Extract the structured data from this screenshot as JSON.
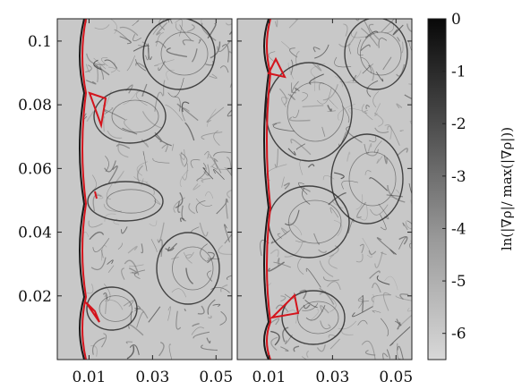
{
  "chart_data": [
    {
      "type": "heatmap",
      "panel": "left",
      "x_ticks": [
        "0.01",
        "0.03",
        "0.05"
      ],
      "x_tick_values": [
        0.01,
        0.03,
        0.05
      ],
      "y_ticks": [
        "0.1",
        "0.08",
        "0.06",
        "0.04",
        "0.02"
      ],
      "y_tick_values": [
        0.1,
        0.08,
        0.06,
        0.04,
        0.02
      ],
      "xlim": [
        0.0,
        0.055
      ],
      "ylim": [
        0.0,
        0.107
      ],
      "overlay_color": "#d4141c"
    },
    {
      "type": "heatmap",
      "panel": "right",
      "x_ticks": [
        "0.01",
        "0.03",
        "0.05"
      ],
      "x_tick_values": [
        0.01,
        0.03,
        0.05
      ],
      "xlim": [
        0.0,
        0.055
      ],
      "ylim": [
        0.0,
        0.107
      ],
      "overlay_color": "#d4141c"
    }
  ],
  "colorbar": {
    "label": "ln(|∇ρ|/ max(|∇ρ|))",
    "ticks": [
      "0",
      "-1",
      "-2",
      "-3",
      "-4",
      "-5",
      "-6"
    ],
    "tick_values": [
      0,
      -1,
      -2,
      -3,
      -4,
      -5,
      -6
    ],
    "range": [
      -6.5,
      0
    ],
    "color_low": "#d6d6d6",
    "color_high": "#0a0a0a"
  }
}
